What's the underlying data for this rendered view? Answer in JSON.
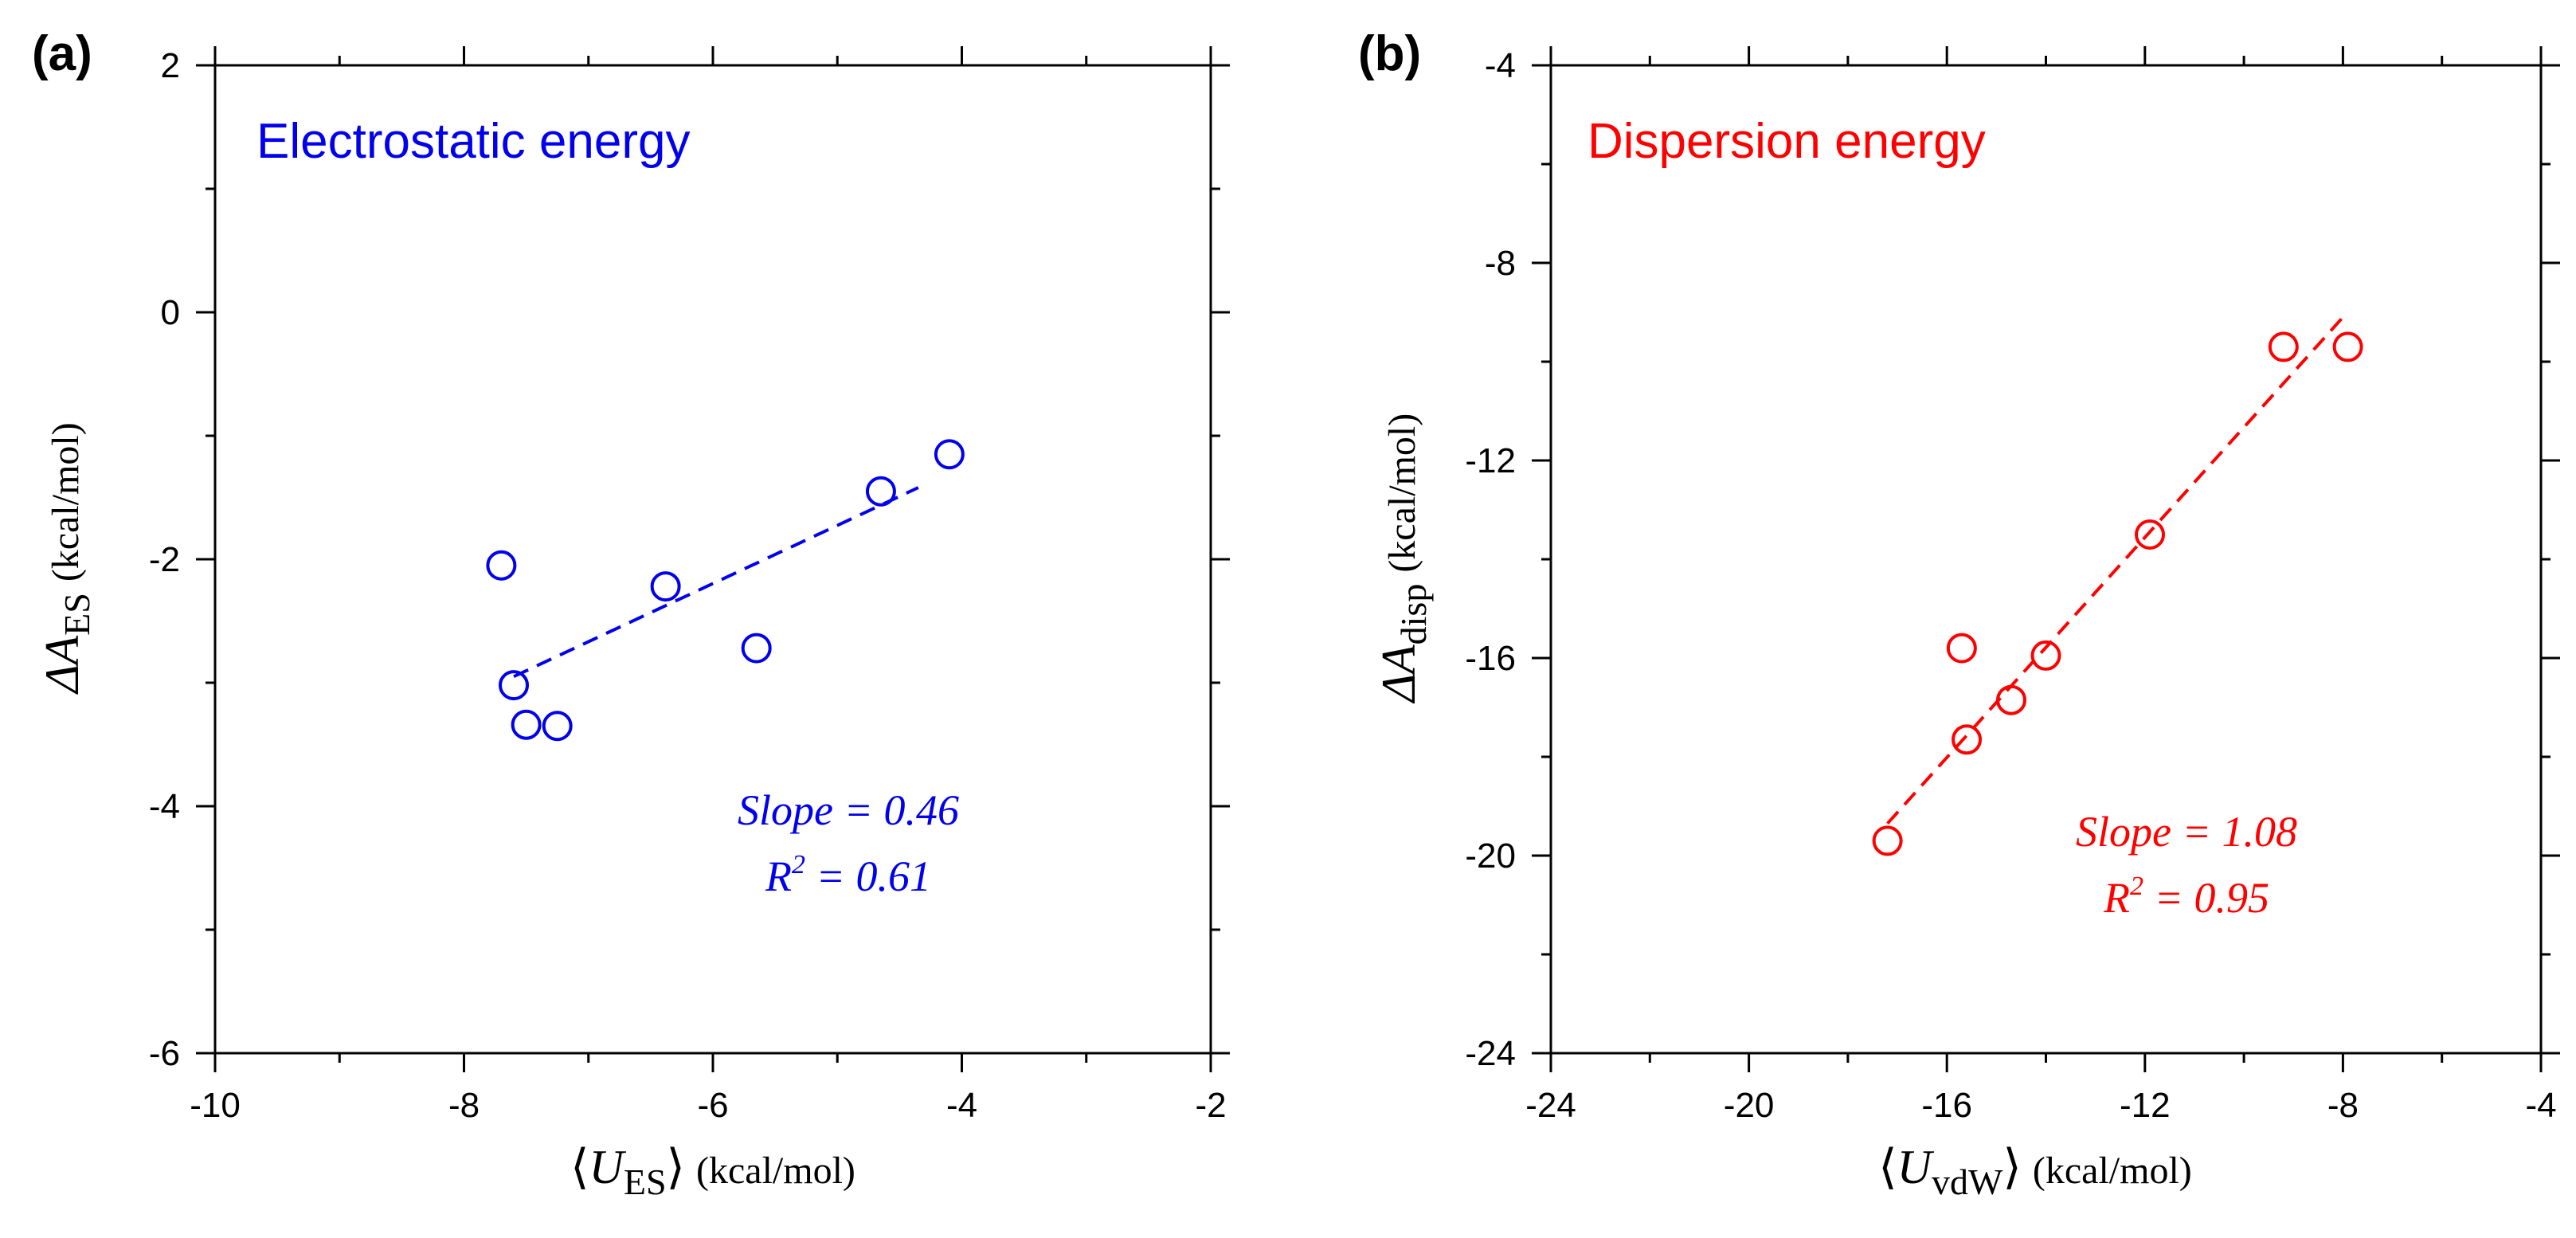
{
  "chart_data": [
    {
      "type": "scatter",
      "panel_label": "(a)",
      "title": "Electrostatic energy",
      "color": "#0000ee",
      "xlabel": {
        "open": "⟨",
        "main": "U",
        "sub": "ES",
        "close": "⟩",
        "unit": "(kcal/mol)"
      },
      "ylabel": {
        "prefix": "Δ",
        "main": "A",
        "sub": "ES",
        "unit": "(kcal/mol)"
      },
      "xlim": [
        -10,
        -2
      ],
      "ylim": [
        -6,
        2
      ],
      "xticks": [
        -10,
        -8,
        -6,
        -4,
        -2
      ],
      "yticks": [
        -6,
        -4,
        -2,
        0,
        2
      ],
      "x_minor_step": 1,
      "y_minor_step": 1,
      "points": [
        {
          "x": -7.7,
          "y": -2.05
        },
        {
          "x": -7.6,
          "y": -3.02
        },
        {
          "x": -7.5,
          "y": -3.34
        },
        {
          "x": -7.25,
          "y": -3.35
        },
        {
          "x": -6.38,
          "y": -2.22
        },
        {
          "x": -5.65,
          "y": -2.72
        },
        {
          "x": -4.65,
          "y": -1.45
        },
        {
          "x": -4.1,
          "y": -1.15
        }
      ],
      "fit_line": {
        "x": [
          -7.6,
          -4.35
        ],
        "y": [
          -2.95,
          -1.42
        ]
      },
      "annotation": {
        "slope_text": "Slope = 0.46",
        "r2_prefix": "R",
        "r2_exp": "2",
        "r2_suffix": " = 0.61"
      }
    },
    {
      "type": "scatter",
      "panel_label": "(b)",
      "title": "Dispersion energy",
      "color": "#ff0000",
      "xlabel": {
        "open": "⟨",
        "main": "U",
        "sub": "vdW",
        "close": "⟩",
        "unit": "(kcal/mol)"
      },
      "ylabel": {
        "prefix": "Δ",
        "main": "A",
        "sub": "disp",
        "unit": "(kcal/mol)"
      },
      "xlim": [
        -24,
        -4
      ],
      "ylim": [
        -24,
        -4
      ],
      "xticks": [
        -24,
        -20,
        -16,
        -12,
        -8,
        -4
      ],
      "yticks": [
        -24,
        -20,
        -16,
        -12,
        -8,
        -4
      ],
      "x_minor_step": 2,
      "y_minor_step": 2,
      "points": [
        {
          "x": -17.2,
          "y": -19.7
        },
        {
          "x": -15.7,
          "y": -15.8
        },
        {
          "x": -15.6,
          "y": -17.65
        },
        {
          "x": -14.7,
          "y": -16.85
        },
        {
          "x": -14.0,
          "y": -15.95
        },
        {
          "x": -11.9,
          "y": -13.5
        },
        {
          "x": -9.2,
          "y": -9.7
        },
        {
          "x": -7.9,
          "y": -9.7
        }
      ],
      "fit_line": {
        "x": [
          -17.2,
          -8.0
        ],
        "y": [
          -19.35,
          -9.1
        ]
      },
      "annotation": {
        "slope_text": "Slope = 1.08",
        "r2_prefix": "R",
        "r2_exp": "2",
        "r2_suffix": " = 0.95"
      }
    }
  ]
}
